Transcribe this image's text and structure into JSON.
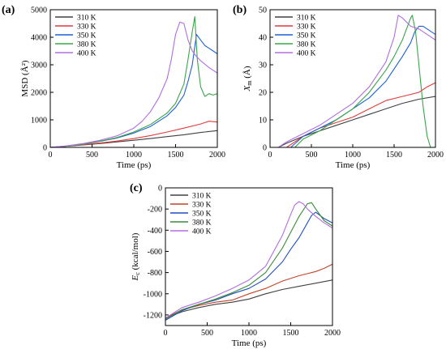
{
  "chart_data": [
    {
      "type": "line",
      "panel_label": "(a)",
      "xlabel": "Time (ps)",
      "ylabel": "MSD (Å²)",
      "xlim": [
        0,
        2000
      ],
      "ylim": [
        0,
        5000
      ],
      "xticks": [
        "0",
        "500",
        "1000",
        "1500",
        "2000"
      ],
      "yticks": [
        "0",
        "1000",
        "2000",
        "3000",
        "4000",
        "5000"
      ],
      "legend_position": "top-left",
      "series": [
        {
          "name": "310 K",
          "color": "#404040",
          "x": [
            0,
            200,
            400,
            600,
            800,
            1000,
            1200,
            1400,
            1600,
            1800,
            2000
          ],
          "y": [
            0,
            40,
            90,
            140,
            200,
            260,
            320,
            390,
            460,
            540,
            610
          ]
        },
        {
          "name": "330 K",
          "color": "#e23b3b",
          "x": [
            0,
            200,
            400,
            600,
            800,
            1000,
            1200,
            1400,
            1600,
            1800,
            1900,
            2000
          ],
          "y": [
            0,
            45,
            100,
            160,
            230,
            320,
            430,
            560,
            700,
            850,
            950,
            920
          ]
        },
        {
          "name": "350 K",
          "color": "#1f5fd6",
          "x": [
            0,
            200,
            400,
            600,
            800,
            1000,
            1200,
            1400,
            1500,
            1600,
            1650,
            1700,
            1750,
            1800,
            1850,
            1900,
            1950,
            2000
          ],
          "y": [
            0,
            50,
            120,
            220,
            340,
            520,
            760,
            1150,
            1450,
            1900,
            2400,
            3000,
            4100,
            3900,
            3700,
            3600,
            3500,
            3400
          ]
        },
        {
          "name": "380 K",
          "color": "#3aa54a",
          "x": [
            0,
            200,
            400,
            600,
            800,
            1000,
            1200,
            1400,
            1500,
            1600,
            1650,
            1700,
            1730,
            1760,
            1800,
            1850,
            1900,
            1950,
            2000
          ],
          "y": [
            0,
            50,
            120,
            230,
            360,
            560,
            830,
            1250,
            1600,
            2300,
            3200,
            4200,
            4750,
            3200,
            2200,
            1850,
            1950,
            1900,
            1950
          ]
        },
        {
          "name": "400 K",
          "color": "#b06ee0",
          "x": [
            0,
            200,
            400,
            600,
            800,
            1000,
            1100,
            1200,
            1300,
            1400,
            1450,
            1500,
            1550,
            1600,
            1650,
            1700,
            1750,
            1800,
            1900,
            2000
          ],
          "y": [
            0,
            60,
            140,
            260,
            420,
            700,
            950,
            1300,
            1800,
            2500,
            3200,
            4100,
            4550,
            4500,
            3900,
            3500,
            3300,
            3150,
            2900,
            2700
          ]
        }
      ]
    },
    {
      "type": "line",
      "panel_label": "(b)",
      "xlabel": "Time (ps)",
      "ylabel": "X",
      "ylabel_sub": "m",
      "ylabel_unit": " (Å)",
      "xlim": [
        0,
        2000
      ],
      "ylim": [
        0,
        50
      ],
      "xticks": [
        "0",
        "500",
        "1000",
        "1500",
        "2000"
      ],
      "yticks": [
        "0",
        "10",
        "20",
        "30",
        "40",
        "50"
      ],
      "legend_position": "top-left",
      "series": [
        {
          "name": "310 K",
          "color": "#404040",
          "x": [
            100,
            200,
            400,
            600,
            800,
            1000,
            1200,
            1400,
            1600,
            1800,
            2000
          ],
          "y": [
            0,
            1.5,
            4,
            6,
            8,
            10,
            12,
            14,
            16,
            17.5,
            18.5
          ]
        },
        {
          "name": "330 K",
          "color": "#e23b3b",
          "x": [
            200,
            400,
            600,
            800,
            1000,
            1200,
            1400,
            1600,
            1800,
            1900,
            2000
          ],
          "y": [
            0,
            4,
            7,
            9,
            11,
            14,
            17,
            18.5,
            20,
            22,
            23.5
          ]
        },
        {
          "name": "350 K",
          "color": "#1f5fd6",
          "x": [
            250,
            400,
            600,
            800,
            1000,
            1200,
            1400,
            1600,
            1700,
            1750,
            1800,
            1850,
            1900,
            2000
          ],
          "y": [
            0,
            4,
            7,
            10,
            14,
            18,
            24,
            33,
            38,
            42,
            44,
            44,
            43,
            41
          ]
        },
        {
          "name": "380 K",
          "color": "#3aa54a",
          "x": [
            300,
            400,
            600,
            800,
            1000,
            1200,
            1400,
            1500,
            1600,
            1700,
            1720,
            1760,
            1800,
            1850,
            1900,
            1940
          ],
          "y": [
            0,
            3,
            6,
            10,
            14,
            20,
            28,
            33,
            39,
            47,
            48,
            42,
            30,
            15,
            4,
            0
          ]
        },
        {
          "name": "400 K",
          "color": "#b06ee0",
          "x": [
            100,
            200,
            400,
            600,
            800,
            1000,
            1200,
            1400,
            1500,
            1550,
            1600,
            1700,
            1800,
            1900,
            2000
          ],
          "y": [
            0,
            2,
            5,
            8,
            12,
            16,
            22,
            31,
            40,
            48,
            47,
            44,
            43,
            41,
            39
          ]
        }
      ]
    },
    {
      "type": "line",
      "panel_label": "(c)",
      "xlabel": "Time (ps)",
      "ylabel": "E",
      "ylabel_sub": "c",
      "ylabel_unit": " (kcal/mol)",
      "xlim": [
        0,
        2000
      ],
      "ylim": [
        -1300,
        0
      ],
      "xticks": [
        "0",
        "500",
        "1000",
        "1500",
        "2000"
      ],
      "yticks": [
        "0",
        "-200",
        "-400",
        "-600",
        "-800",
        "-1000",
        "-1200"
      ],
      "legend_position": "top-left",
      "series": [
        {
          "name": "310 K",
          "color": "#404040",
          "x": [
            0,
            200,
            400,
            600,
            800,
            1000,
            1200,
            1400,
            1600,
            1800,
            2000
          ],
          "y": [
            -1230,
            -1170,
            -1130,
            -1100,
            -1080,
            -1050,
            -1000,
            -960,
            -930,
            -900,
            -870
          ]
        },
        {
          "name": "330 K",
          "color": "#c0442a",
          "x": [
            0,
            200,
            400,
            600,
            800,
            1000,
            1200,
            1400,
            1600,
            1800,
            1900,
            2000
          ],
          "y": [
            -1230,
            -1150,
            -1110,
            -1080,
            -1060,
            -1000,
            -950,
            -880,
            -830,
            -790,
            -760,
            -720
          ]
        },
        {
          "name": "350 K",
          "color": "#1f4fc0",
          "x": [
            0,
            200,
            400,
            600,
            800,
            1000,
            1200,
            1400,
            1500,
            1600,
            1700,
            1750,
            1800,
            1850,
            1900,
            2000
          ],
          "y": [
            -1250,
            -1160,
            -1100,
            -1060,
            -1000,
            -950,
            -860,
            -700,
            -580,
            -470,
            -330,
            -260,
            -230,
            -260,
            -290,
            -330
          ]
        },
        {
          "name": "380 K",
          "color": "#3a8a3a",
          "x": [
            0,
            200,
            400,
            600,
            800,
            1000,
            1200,
            1400,
            1500,
            1600,
            1700,
            1750,
            1800,
            1900,
            2000
          ],
          "y": [
            -1240,
            -1150,
            -1100,
            -1050,
            -990,
            -920,
            -800,
            -570,
            -420,
            -270,
            -150,
            -140,
            -200,
            -310,
            -360
          ]
        },
        {
          "name": "400 K",
          "color": "#b06ee0",
          "x": [
            0,
            200,
            400,
            600,
            800,
            1000,
            1200,
            1400,
            1500,
            1550,
            1600,
            1650,
            1700,
            1800,
            1900,
            2000
          ],
          "y": [
            -1230,
            -1130,
            -1080,
            -1020,
            -950,
            -870,
            -740,
            -450,
            -250,
            -160,
            -130,
            -150,
            -200,
            -270,
            -330,
            -380
          ]
        }
      ]
    }
  ]
}
